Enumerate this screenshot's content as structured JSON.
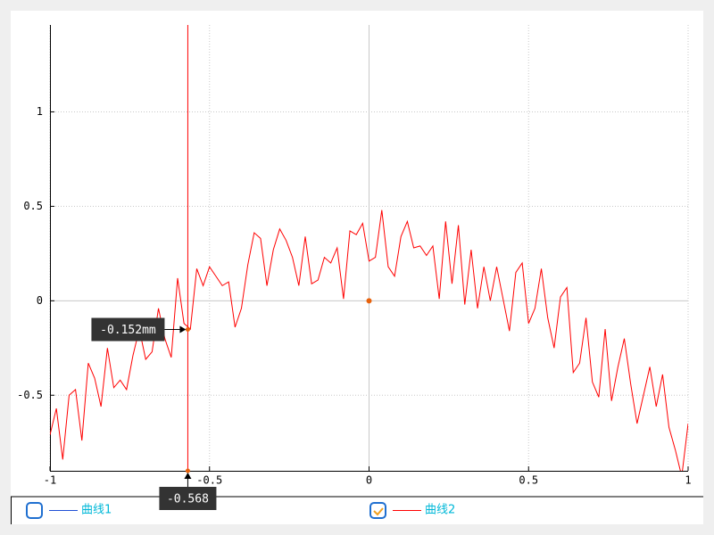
{
  "chart_data": {
    "type": "line",
    "x": [
      -1,
      -0.98,
      -0.96,
      -0.94,
      -0.92,
      -0.9,
      -0.88,
      -0.86,
      -0.84,
      -0.82,
      -0.8,
      -0.78,
      -0.76,
      -0.74,
      -0.72,
      -0.7,
      -0.68,
      -0.66,
      -0.64,
      -0.62,
      -0.6,
      -0.58,
      -0.56,
      -0.54,
      -0.52,
      -0.5,
      -0.48,
      -0.46,
      -0.44,
      -0.42,
      -0.4,
      -0.38,
      -0.36,
      -0.34,
      -0.32,
      -0.3,
      -0.28,
      -0.26,
      -0.24,
      -0.22,
      -0.2,
      -0.18,
      -0.16,
      -0.14,
      -0.12,
      -0.1,
      -0.08,
      -0.06,
      -0.04,
      -0.02,
      0,
      0.02,
      0.04,
      0.06,
      0.08,
      0.1,
      0.12,
      0.14,
      0.16,
      0.18,
      0.2,
      0.22,
      0.24,
      0.26,
      0.28,
      0.3,
      0.32,
      0.34,
      0.36,
      0.38,
      0.4,
      0.42,
      0.44,
      0.46,
      0.48,
      0.5,
      0.52,
      0.54,
      0.56,
      0.58,
      0.6,
      0.62,
      0.64,
      0.66,
      0.68,
      0.7,
      0.72,
      0.74,
      0.76,
      0.78,
      0.8,
      0.82,
      0.84,
      0.86,
      0.88,
      0.9,
      0.92,
      0.94,
      0.96,
      0.98,
      1
    ],
    "series": [
      {
        "name": "曲线1",
        "color": "#1f4fd6",
        "checked": false
      },
      {
        "name": "曲线2",
        "color": "#ff0000",
        "checked": true,
        "values": [
          -0.71,
          -0.57,
          -0.84,
          -0.5,
          -0.47,
          -0.74,
          -0.33,
          -0.41,
          -0.56,
          -0.25,
          -0.46,
          -0.42,
          -0.47,
          -0.29,
          -0.15,
          -0.31,
          -0.27,
          -0.04,
          -0.2,
          -0.3,
          0.12,
          -0.12,
          -0.15,
          0.17,
          0.08,
          0.18,
          0.13,
          0.08,
          0.1,
          -0.14,
          -0.04,
          0.19,
          0.36,
          0.33,
          0.08,
          0.27,
          0.38,
          0.32,
          0.23,
          0.08,
          0.34,
          0.09,
          0.11,
          0.23,
          0.2,
          0.28,
          0.01,
          0.37,
          0.35,
          0.41,
          0.21,
          0.23,
          0.48,
          0.18,
          0.13,
          0.34,
          0.42,
          0.28,
          0.29,
          0.24,
          0.29,
          0.01,
          0.42,
          0.09,
          0.4,
          -0.02,
          0.27,
          -0.04,
          0.18,
          0,
          0.18,
          0.01,
          -0.16,
          0.15,
          0.2,
          -0.12,
          -0.04,
          0.17,
          -0.09,
          -0.25,
          0.02,
          0.07,
          -0.38,
          -0.33,
          -0.09,
          -0.43,
          -0.51,
          -0.15,
          -0.53,
          -0.35,
          -0.2,
          -0.44,
          -0.65,
          -0.5,
          -0.35,
          -0.56,
          -0.39,
          -0.67,
          -0.79,
          -0.93,
          -0.65
        ]
      }
    ],
    "xlim": [
      -1,
      1
    ],
    "xticks": [
      -1,
      -0.5,
      0,
      0.5,
      1
    ],
    "ylim": [
      -0.9,
      1.46
    ],
    "yticks": [
      -0.5,
      0,
      0.5,
      1
    ],
    "grid": true,
    "tracer_point": {
      "x": 0,
      "y": 0,
      "color": "#e8620c"
    },
    "cursor": {
      "x": -0.568,
      "y": -0.152,
      "x_label": "-0.568",
      "y_label": "-0.152mm",
      "color": "#ff0000"
    }
  }
}
